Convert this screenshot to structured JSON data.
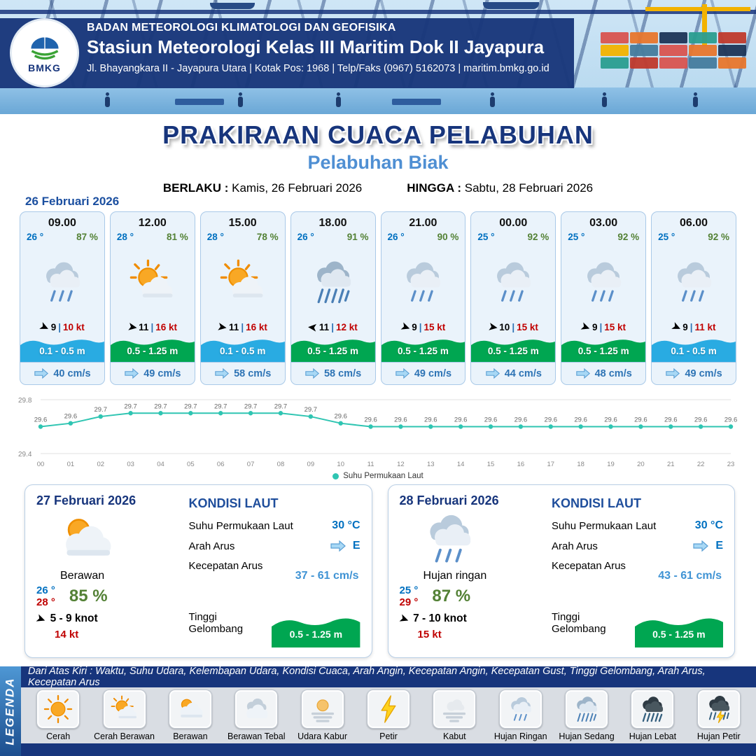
{
  "header": {
    "agency": "BADAN METEOROLOGI KLIMATOLOGI DAN GEOFISIKA",
    "station": "Stasiun Meteorologi Kelas III Maritim Dok II Jayapura",
    "address": "Jl. Bhayangkara II - Jayapura Utara | Kotak Pos: 1968 | Telp/Faks (0967) 5162073 | maritim.bmkg.go.id",
    "logo_text": "BMKG"
  },
  "title": {
    "main": "PRAKIRAAN CUACA PELABUHAN",
    "port": "Pelabuhan Biak",
    "berlaku_label": "BERLAKU :",
    "berlaku_value": "Kamis, 26 Februari 2026",
    "hingga_label": "HINGGA :",
    "hingga_value": "Sabtu, 28 Februari 2026"
  },
  "forecast_date": "26 Februari 2026",
  "cards": [
    {
      "time": "09.00",
      "temp": "26 °",
      "humidity": "87 %",
      "icon": "hujan-ringan",
      "wind_speed": "9",
      "wind_gust": "10 kt",
      "arrow_deg": 25,
      "wave": "0.1 - 0.5 m",
      "wave_color": "#29abe2",
      "current": "40 cm/s"
    },
    {
      "time": "12.00",
      "temp": "28 °",
      "humidity": "81 %",
      "icon": "cerah-berawan",
      "wind_speed": "11",
      "wind_gust": "16 kt",
      "arrow_deg": 10,
      "wave": "0.5 - 1.25 m",
      "wave_color": "#00a651",
      "current": "49 cm/s"
    },
    {
      "time": "15.00",
      "temp": "28 °",
      "humidity": "78 %",
      "icon": "cerah-berawan",
      "wind_speed": "11",
      "wind_gust": "16 kt",
      "arrow_deg": 10,
      "wave": "0.1 - 0.5 m",
      "wave_color": "#29abe2",
      "current": "58 cm/s"
    },
    {
      "time": "18.00",
      "temp": "26 °",
      "humidity": "91 %",
      "icon": "hujan-sedang",
      "wind_speed": "11",
      "wind_gust": "12 kt",
      "arrow_deg": 185,
      "wave": "0.5 - 1.25 m",
      "wave_color": "#00a651",
      "current": "58 cm/s"
    },
    {
      "time": "21.00",
      "temp": "26 °",
      "humidity": "90 %",
      "icon": "hujan-ringan",
      "wind_speed": "9",
      "wind_gust": "15 kt",
      "arrow_deg": 20,
      "wave": "0.5 - 1.25 m",
      "wave_color": "#00a651",
      "current": "49 cm/s"
    },
    {
      "time": "00.00",
      "temp": "25 °",
      "humidity": "92 %",
      "icon": "hujan-ringan",
      "wind_speed": "10",
      "wind_gust": "15 kt",
      "arrow_deg": 10,
      "wave": "0.5 - 1.25 m",
      "wave_color": "#00a651",
      "current": "44 cm/s"
    },
    {
      "time": "03.00",
      "temp": "25 °",
      "humidity": "92 %",
      "icon": "hujan-ringan",
      "wind_speed": "9",
      "wind_gust": "15 kt",
      "arrow_deg": 20,
      "wave": "0.5 - 1.25 m",
      "wave_color": "#00a651",
      "current": "48 cm/s"
    },
    {
      "time": "06.00",
      "temp": "25 °",
      "humidity": "92 %",
      "icon": "hujan-ringan",
      "wind_speed": "9",
      "wind_gust": "11 kt",
      "arrow_deg": 25,
      "wave": "0.1 - 0.5 m",
      "wave_color": "#29abe2",
      "current": "49 cm/s"
    }
  ],
  "chart_data": {
    "type": "line",
    "x": [
      "00",
      "01",
      "02",
      "03",
      "04",
      "05",
      "06",
      "07",
      "08",
      "09",
      "10",
      "11",
      "12",
      "13",
      "14",
      "15",
      "16",
      "17",
      "18",
      "19",
      "20",
      "21",
      "22",
      "23"
    ],
    "series": [
      {
        "name": "Suhu Permukaan Laut",
        "values": [
          29.6,
          29.6,
          29.7,
          29.7,
          29.7,
          29.7,
          29.7,
          29.7,
          29.7,
          29.7,
          29.6,
          29.6,
          29.6,
          29.6,
          29.6,
          29.6,
          29.6,
          29.6,
          29.6,
          29.6,
          29.6,
          29.6,
          29.6,
          29.6
        ]
      }
    ],
    "ylim": [
      29.4,
      29.8
    ],
    "xlabel": "",
    "ylabel": "",
    "line_color": "#2fc5b2",
    "legend_position": "bottom",
    "grid": true
  },
  "daily": [
    {
      "date": "27 Februari 2026",
      "icon": "berawan",
      "condition": "Berawan",
      "temp_min": "26 °",
      "temp_max": "28 °",
      "humidity": "85 %",
      "arrow_deg": 20,
      "wind_range": "5 - 9 knot",
      "gust": "14 kt",
      "kondisi_laut_title": "KONDISI LAUT",
      "sst_label": "Suhu Permukaan Laut",
      "sst": "30 °C",
      "arah_label": "Arah Arus",
      "arah": "E",
      "kecepatan_label": "Kecepatan Arus",
      "kecepatan": "37 - 61 cm/s",
      "gelombang_label": "Tinggi Gelombang",
      "gelombang": "0.5 - 1.25 m",
      "gelombang_color": "#00a651"
    },
    {
      "date": "28 Februari 2026",
      "icon": "hujan-ringan",
      "condition": "Hujan ringan",
      "temp_min": "25 °",
      "temp_max": "29 °",
      "humidity": "87 %",
      "arrow_deg": 20,
      "wind_range": "7 - 10 knot",
      "gust": "15 kt",
      "kondisi_laut_title": "KONDISI LAUT",
      "sst_label": "Suhu Permukaan Laut",
      "sst": "30 °C",
      "arah_label": "Arah Arus",
      "arah": "E",
      "kecepatan_label": "Kecepatan Arus",
      "kecepatan": "43 - 61 cm/s",
      "gelombang_label": "Tinggi Gelombang",
      "gelombang": "0.5 - 1.25 m",
      "gelombang_color": "#00a651"
    }
  ],
  "legend": {
    "title": "LEGENDA",
    "description": "Dari Atas Kiri : Waktu, Suhu Udara, Kelembapan Udara, Kondisi Cuaca, Arah Angin, Kecepatan Angin, Kecepatan Gust, Tinggi Gelombang, Arah Arus, Kecepatan Arus",
    "items": [
      {
        "label": "Cerah",
        "icon": "cerah"
      },
      {
        "label": "Cerah Berawan",
        "icon": "cerah-berawan"
      },
      {
        "label": "Berawan",
        "icon": "berawan"
      },
      {
        "label": "Berawan Tebal",
        "icon": "berawan-tebal"
      },
      {
        "label": "Udara Kabur",
        "icon": "udara-kabur"
      },
      {
        "label": "Petir",
        "icon": "petir"
      },
      {
        "label": "Kabut",
        "icon": "kabut"
      },
      {
        "label": "Hujan Ringan",
        "icon": "hujan-ringan"
      },
      {
        "label": "Hujan Sedang",
        "icon": "hujan-sedang"
      },
      {
        "label": "Hujan Lebat",
        "icon": "hujan-lebat"
      },
      {
        "label": "Hujan Petir",
        "icon": "hujan-petir"
      }
    ]
  }
}
